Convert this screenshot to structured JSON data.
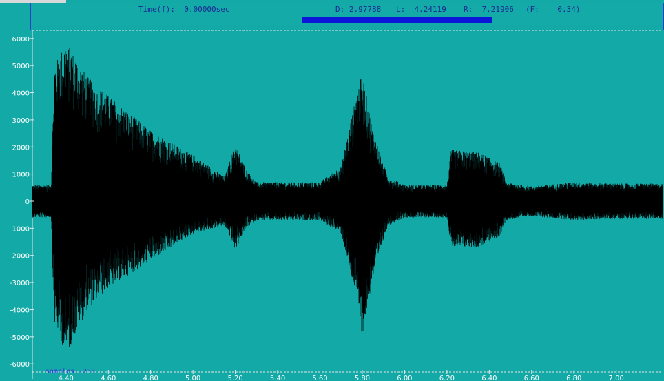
{
  "toolbar": {
    "time_readout": "Time(f):  0.00000sec",
    "d_readout": "D: 2.97788",
    "l_readout": "L:  4.24119",
    "r_readout": "R:  7.21906",
    "f_readout": "(F:    0.34)"
  },
  "scrollbar": {
    "thumb_start_fraction": 0.43,
    "thumb_end_fraction": 0.73
  },
  "status": {
    "samples_label": "samples",
    "samples_value": "-238"
  },
  "colors": {
    "background": "#12a9a6",
    "waveform": "#000000",
    "frame": "#2a3fcf",
    "scroll_thumb": "#0b16d8",
    "tick_labels": "#ffffff",
    "samples_text": "#3a2ee0"
  },
  "chart_data": {
    "type": "line",
    "title": "",
    "xlabel": "",
    "ylabel": "",
    "xlim": [
      4.24119,
      7.21906
    ],
    "ylim": [
      -6300,
      6300
    ],
    "x_ticks": [
      "4.40",
      "4.60",
      "4.80",
      "5.00",
      "5.20",
      "5.40",
      "5.60",
      "5.80",
      "6.00",
      "6.20",
      "6.40",
      "6.60",
      "6.80",
      "7.00"
    ],
    "x_tick_values": [
      4.4,
      4.6,
      4.8,
      5.0,
      5.2,
      5.4,
      5.6,
      5.8,
      6.0,
      6.2,
      6.4,
      6.6,
      6.8,
      7.0
    ],
    "y_ticks": [
      "6000",
      "5000",
      "4000",
      "3000",
      "2000",
      "1000",
      "0",
      "-1000",
      "-2000",
      "-3000",
      "-4000",
      "-5000",
      "-6000"
    ],
    "y_tick_values": [
      6000,
      5000,
      4000,
      3000,
      2000,
      1000,
      0,
      -1000,
      -2000,
      -3000,
      -4000,
      -5000,
      -6000
    ],
    "grid": false,
    "series": [
      {
        "values_description_note": "",
        "envelope": {
          "t": [
            4.24,
            4.33,
            4.345,
            4.4,
            4.5,
            4.6,
            4.8,
            5.0,
            5.15,
            5.2,
            5.25,
            5.3,
            5.6,
            5.7,
            5.78,
            5.8,
            5.85,
            5.92,
            6.0,
            6.2,
            6.22,
            6.35,
            6.45,
            6.48,
            6.6,
            6.8,
            7.0,
            7.219
          ],
          "upper": [
            600,
            600,
            5000,
            5900,
            4600,
            3900,
            2600,
            1700,
            900,
            2100,
            1200,
            700,
            700,
            1300,
            4200,
            4700,
            2600,
            900,
            600,
            600,
            1900,
            1800,
            1400,
            700,
            550,
            700,
            650,
            650
          ],
          "lower": [
            -600,
            -600,
            -4500,
            -5700,
            -4000,
            -3200,
            -2200,
            -1200,
            -900,
            -1800,
            -1000,
            -700,
            -700,
            -1200,
            -3800,
            -5000,
            -2800,
            -900,
            -600,
            -600,
            -1700,
            -1700,
            -1300,
            -700,
            -550,
            -700,
            -650,
            -650
          ]
        }
      }
    ]
  }
}
